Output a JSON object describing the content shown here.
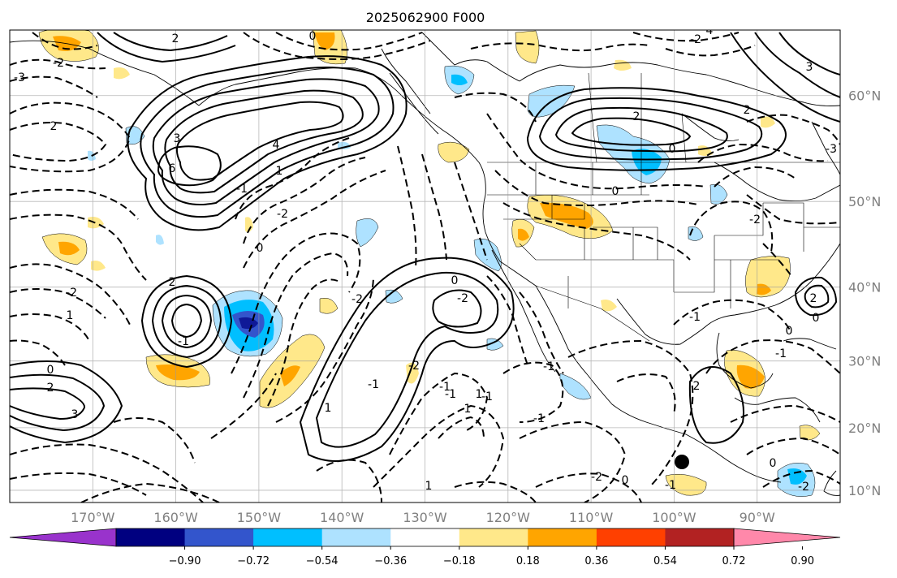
{
  "title": "2025062900 F000",
  "map": {
    "longitude_labels": [
      "170°W",
      "160°W",
      "150°W",
      "140°W",
      "130°W",
      "120°W",
      "110°W",
      "100°W",
      "90°W"
    ],
    "latitude_labels": [
      "60°N",
      "50°N",
      "40°N",
      "30°N",
      "20°N",
      "10°N"
    ],
    "longitude_values": [
      -170,
      -160,
      -150,
      -140,
      -130,
      -120,
      -110,
      -100,
      -90
    ],
    "latitude_values": [
      60,
      50,
      40,
      30,
      20,
      10
    ],
    "extent": {
      "lon_min": -180,
      "lon_max": -80,
      "lat_min": 8,
      "lat_max": 65
    },
    "grid": true,
    "contour_labels": [
      "2",
      "-3",
      "0",
      "2",
      "-2",
      "3",
      "6",
      "4",
      "-1",
      "1",
      "-2",
      "0",
      "2",
      "-2",
      "1",
      "-1",
      "0",
      "2",
      "3",
      "0",
      "-2",
      "-2",
      "-1",
      "1",
      "-2",
      "-1",
      "1",
      "1",
      "-2",
      "-1",
      "2",
      "0",
      "-1",
      "2",
      "0",
      "4",
      "3",
      "-2",
      "-3",
      "-2",
      "2",
      "0",
      "-1",
      "-1",
      "1",
      "-1",
      "2",
      "0",
      "-2",
      "-1",
      "0",
      "-1",
      "0"
    ],
    "marker_label": "black-dot"
  },
  "colorbar": {
    "tick_labels": [
      "−0.90",
      "−0.72",
      "−0.54",
      "−0.36",
      "−0.18",
      "0.18",
      "0.36",
      "0.54",
      "0.72",
      "0.90"
    ],
    "bins": [
      {
        "color": "#9933cc"
      },
      {
        "color": "#000080"
      },
      {
        "color": "#3355cc"
      },
      {
        "color": "#00bfff"
      },
      {
        "color": "#aee2ff"
      },
      {
        "color": "#ffffff"
      },
      {
        "color": "#ffe88a"
      },
      {
        "color": "#ffa500"
      },
      {
        "color": "#ff4000"
      },
      {
        "color": "#b22222"
      },
      {
        "color": "#ff88aa"
      }
    ]
  }
}
